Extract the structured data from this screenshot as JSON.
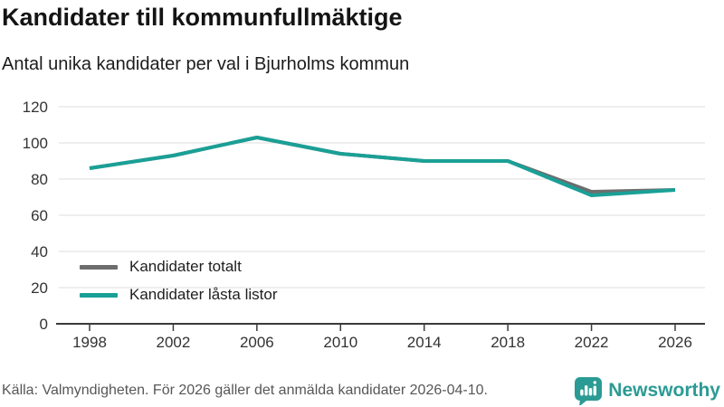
{
  "header": {
    "title": "Kandidater till kommunfullmäktige",
    "subtitle": "Antal unika kandidater per val i Bjurholms kommun"
  },
  "chart_data": {
    "type": "line",
    "title": "Kandidater till kommunfullmäktige",
    "subtitle": "Antal unika kandidater per val i Bjurholms kommun",
    "x": [
      1998,
      2002,
      2006,
      2010,
      2014,
      2018,
      2022,
      2026
    ],
    "series": [
      {
        "name": "Kandidater totalt",
        "color": "#6d6d6d",
        "values": [
          86,
          93,
          103,
          94,
          90,
          90,
          73,
          74
        ]
      },
      {
        "name": "Kandidater låsta listor",
        "color": "#1aa096",
        "values": [
          86,
          93,
          103,
          94,
          90,
          90,
          71,
          74
        ]
      }
    ],
    "xlabel": "",
    "ylabel": "",
    "ylim": [
      0,
      120
    ],
    "yticks": [
      0,
      20,
      40,
      60,
      80,
      100,
      120
    ],
    "grid": true,
    "legend_position": "inside-bottom-left"
  },
  "footer": {
    "source": "Källa: Valmyndigheten. För 2026 gäller det anmälda kandidater 2026-04-10.",
    "brand": "Newsworthy"
  },
  "colors": {
    "accent": "#1aa096",
    "series_gray": "#6d6d6d",
    "grid": "#dcdcdc",
    "axis": "#3a3a3a",
    "tick_label": "#333333",
    "footer_text": "#575757",
    "brand_teal": "#2a9b94"
  }
}
